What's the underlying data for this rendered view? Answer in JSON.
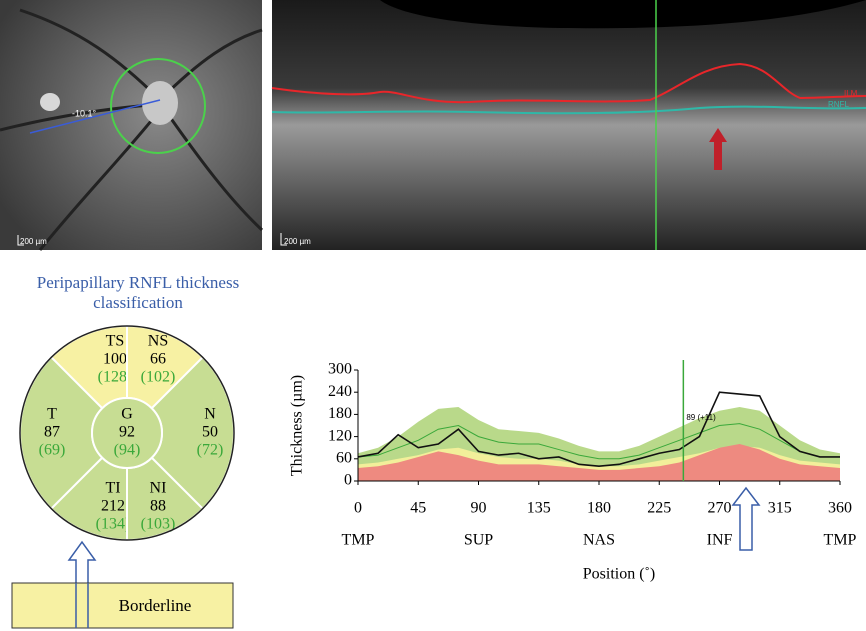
{
  "fundus": {
    "angle_label": "-10.1°",
    "scale_label": "200 µm"
  },
  "oct": {
    "scale_label": "200 µm",
    "layers": [
      {
        "name": "ILM",
        "color": "#e8262a"
      },
      {
        "name": "RNFL",
        "color": "#2fb8a8"
      }
    ]
  },
  "classification": {
    "title_lines": [
      "Peripapillary RNFL thickness",
      "classification"
    ],
    "colors": {
      "borderline": "#f7f1a3",
      "normal": "#c7dd93",
      "normal_value": "#3aa83a"
    },
    "sectors": [
      {
        "name": "TS",
        "value": 100,
        "normal": "(128)",
        "status": "borderline"
      },
      {
        "name": "NS",
        "value": 66,
        "normal": "(102)",
        "status": "borderline"
      },
      {
        "name": "T",
        "value": 87,
        "normal": "(69)",
        "status": "normal"
      },
      {
        "name": "N",
        "value": 50,
        "normal": "(72)",
        "status": "normal"
      },
      {
        "name": "TI",
        "value": 212,
        "normal": "(134)",
        "status": "normal"
      },
      {
        "name": "NI",
        "value": 88,
        "normal": "(103)",
        "status": "normal"
      },
      {
        "name": "G",
        "value": 92,
        "normal": "(94)",
        "status": "normal"
      }
    ],
    "result": "Borderline"
  },
  "chart_data": {
    "type": "line",
    "xlabel": "Position (˚)",
    "ylabel": "Thickness (µm)",
    "x": [
      0,
      15,
      30,
      45,
      60,
      75,
      90,
      105,
      120,
      135,
      150,
      165,
      180,
      195,
      210,
      225,
      240,
      255,
      270,
      285,
      300,
      315,
      330,
      345,
      360
    ],
    "xlim": [
      0,
      360
    ],
    "xticks": [
      0,
      45,
      90,
      135,
      180,
      225,
      270,
      315,
      360
    ],
    "ylim": [
      0,
      300
    ],
    "yticks": [
      0,
      60,
      120,
      180,
      240,
      300
    ],
    "region_labels": [
      {
        "value": 0,
        "label": "TMP"
      },
      {
        "value": 90,
        "label": "SUP"
      },
      {
        "value": 180,
        "label": "NAS"
      },
      {
        "value": 270,
        "label": "INF"
      },
      {
        "value": 360,
        "label": "TMP"
      }
    ],
    "cursor": {
      "value": 243,
      "label": "89 (+11)",
      "color": "#3aa83a"
    },
    "bands": [
      {
        "color": "#b9d98a",
        "values": [
          75,
          90,
          120,
          160,
          195,
          200,
          165,
          140,
          135,
          130,
          115,
          95,
          80,
          80,
          95,
          120,
          145,
          170,
          190,
          200,
          190,
          150,
          110,
          85,
          75
        ]
      },
      {
        "color": "#f2ef9a",
        "values": [
          45,
          50,
          60,
          70,
          85,
          90,
          75,
          65,
          60,
          60,
          55,
          45,
          40,
          40,
          45,
          55,
          65,
          75,
          90,
          95,
          90,
          70,
          55,
          50,
          45
        ]
      },
      {
        "color": "#ee8a80",
        "values": [
          35,
          40,
          50,
          65,
          80,
          70,
          55,
          45,
          45,
          45,
          40,
          35,
          30,
          30,
          35,
          40,
          50,
          70,
          90,
          100,
          85,
          60,
          45,
          40,
          35
        ]
      }
    ],
    "series": [
      {
        "color": "#3aa83a",
        "values": [
          65,
          70,
          90,
          110,
          140,
          150,
          120,
          105,
          100,
          100,
          85,
          70,
          60,
          60,
          70,
          90,
          110,
          130,
          150,
          155,
          140,
          110,
          80,
          65,
          65
        ]
      },
      {
        "color": "#111111",
        "values": [
          65,
          75,
          125,
          90,
          100,
          140,
          80,
          70,
          75,
          60,
          65,
          45,
          40,
          45,
          60,
          75,
          85,
          120,
          240,
          235,
          230,
          120,
          80,
          65,
          65
        ]
      }
    ]
  }
}
